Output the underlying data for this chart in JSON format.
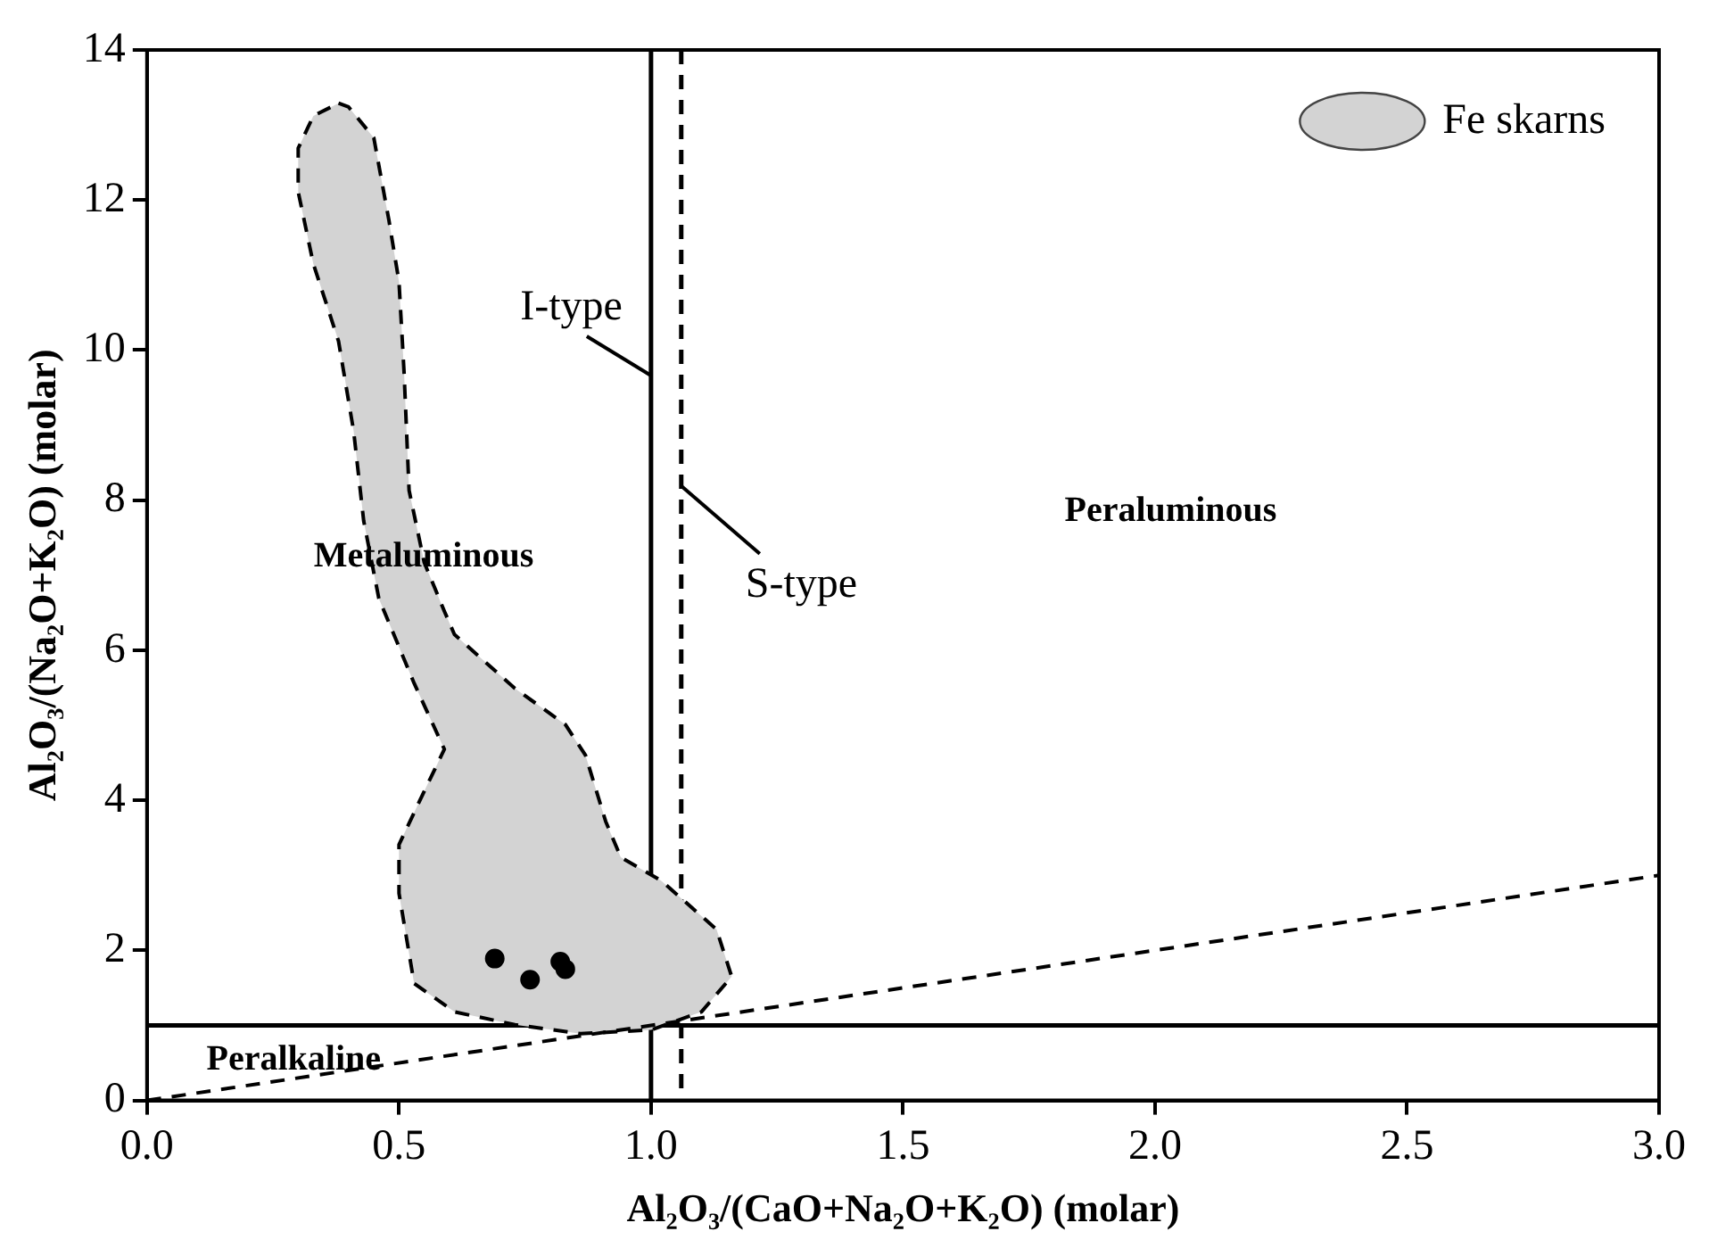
{
  "chart_data": {
    "type": "scatter",
    "xlabel": "Al₂O₃/(CaO+Na₂O+K₂O) (molar)",
    "ylabel": "Al₂O₃/(Na₂O+K₂O) (molar)",
    "xlim": [
      0,
      3
    ],
    "ylim": [
      0,
      14
    ],
    "xticks": [
      {
        "value": 0,
        "label": "0.0"
      },
      0.5,
      {
        "value": 1,
        "label": "1.0"
      },
      1.5,
      {
        "value": 2,
        "label": "2.0"
      },
      2.5,
      {
        "value": 3,
        "label": "3.0"
      }
    ],
    "yticks": [
      0,
      2,
      4,
      6,
      8,
      10,
      12,
      14
    ],
    "grid": false,
    "legend": "top right",
    "series": [
      {
        "type": "area",
        "name": "Fe skarns",
        "color": "#d3d3d3",
        "line_style": "dashed",
        "x": [
          0.38,
          0.4,
          0.45,
          0.48,
          0.5,
          0.51,
          0.52,
          0.55,
          0.59,
          0.61,
          0.73,
          0.83,
          0.87,
          0.91,
          0.94,
          1.02,
          1.13,
          1.16,
          1.1,
          1.0,
          0.86,
          0.73,
          0.61,
          0.53,
          0.5,
          0.5,
          0.55,
          0.59,
          0.53,
          0.46,
          0.43,
          0.41,
          0.38,
          0.33,
          0.3,
          0.3,
          0.33,
          0.38
        ],
        "values": [
          13.29,
          13.24,
          12.83,
          11.73,
          10.91,
          9.71,
          8.13,
          7.17,
          6.52,
          6.21,
          5.49,
          5.01,
          4.6,
          3.72,
          3.24,
          2.93,
          2.28,
          1.65,
          1.18,
          0.94,
          0.89,
          1.01,
          1.18,
          1.56,
          2.76,
          3.41,
          4.12,
          4.68,
          5.56,
          6.69,
          7.72,
          8.92,
          10.12,
          11.15,
          12.11,
          12.69,
          13.12,
          13.29
        ]
      },
      {
        "type": "line",
        "color": "#000000",
        "line_style": "dashed",
        "marker": "none",
        "x": [
          0,
          3
        ],
        "values": [
          0,
          3
        ]
      },
      {
        "type": "scatter",
        "color": "#000000",
        "marker": "circle",
        "x": [
          0.69,
          0.76,
          0.82,
          0.83
        ],
        "values": [
          1.89,
          1.61,
          1.85,
          1.75
        ]
      }
    ],
    "ref_lines": [
      {
        "axis": "x",
        "value": 1,
        "label": "I-type",
        "line_style": "solid",
        "color": "#000000"
      },
      {
        "axis": "x",
        "value": 1.06,
        "label": "S-type",
        "line_style": "dashed",
        "color": "#000000"
      },
      {
        "axis": "y",
        "value": 1,
        "line_style": "solid",
        "color": "#000000"
      }
    ],
    "annotations": [
      "Metaluminous",
      "Peraluminous",
      "Peralkaline"
    ]
  }
}
